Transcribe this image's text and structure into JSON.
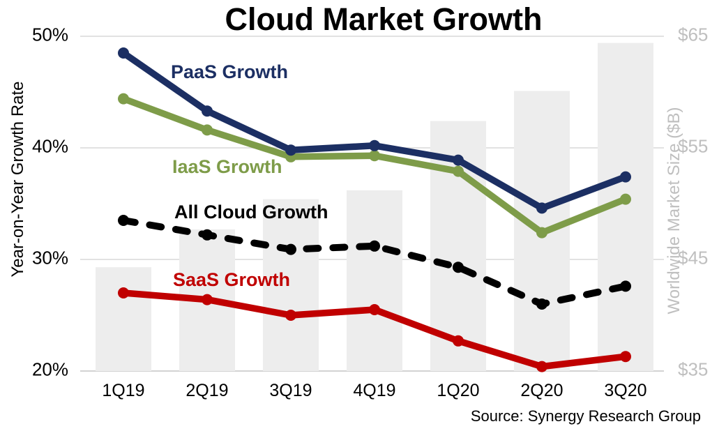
{
  "title": "Cloud Market Growth",
  "source": "Source: Synergy Research Group",
  "axes": {
    "left_title": "Year-on-Year Growth Rate",
    "right_title": "Worldwide Market Size ($B)",
    "left_ticks": [
      "50%",
      "40%",
      "30%",
      "20%"
    ],
    "right_ticks": [
      "$65",
      "$55",
      "$45",
      "$35"
    ]
  },
  "series_labels": {
    "paas": "PaaS Growth",
    "iaas": "IaaS Growth",
    "all_cloud": "All Cloud Growth",
    "saas": "SaaS Growth"
  },
  "colors": {
    "paas": "#1c2f63",
    "iaas": "#7e9c49",
    "all_cloud": "#000000",
    "saas": "#c00000",
    "bars": "#ededed",
    "gridline": "#e2e2e2",
    "baseline": "#d2d2d2",
    "right_axis_text": "#bfbfbf"
  },
  "chart_data": {
    "type": "line",
    "subtype": "combo-line-bar",
    "title": "Cloud Market Growth",
    "categories": [
      "1Q19",
      "2Q19",
      "3Q19",
      "4Q19",
      "1Q20",
      "2Q20",
      "3Q20"
    ],
    "ylabel_left": "Year-on-Year Growth Rate",
    "ylabel_right": "Worldwide Market Size ($B)",
    "ylim_left": [
      20,
      50
    ],
    "ylim_right": [
      35,
      65
    ],
    "ytick_step_left": 10,
    "ytick_step_right": 10,
    "grid": "horizontal",
    "legend": "inline-labels",
    "series": [
      {
        "name": "Worldwide Market Size ($B)",
        "type": "bar",
        "axis": "right",
        "color": "#ededed",
        "values": [
          44.3,
          47.7,
          50.4,
          51.2,
          57.4,
          60.1,
          64.4
        ]
      },
      {
        "name": "All Cloud Growth",
        "type": "line",
        "style": "dashed",
        "axis": "left",
        "color": "#000000",
        "values": [
          33.5,
          32.2,
          30.9,
          31.2,
          29.3,
          26.0,
          27.6
        ]
      },
      {
        "name": "IaaS Growth",
        "type": "line",
        "style": "solid",
        "axis": "left",
        "color": "#7e9c49",
        "values": [
          44.4,
          41.6,
          39.2,
          39.3,
          37.9,
          32.4,
          35.4
        ]
      },
      {
        "name": "PaaS Growth",
        "type": "line",
        "style": "solid",
        "axis": "left",
        "color": "#1c2f63",
        "values": [
          48.5,
          43.3,
          39.8,
          40.2,
          38.9,
          34.6,
          37.4
        ]
      },
      {
        "name": "SaaS Growth",
        "type": "line",
        "style": "solid",
        "axis": "left",
        "color": "#c00000",
        "values": [
          27.0,
          26.4,
          25.0,
          25.5,
          22.7,
          20.4,
          21.3
        ]
      }
    ],
    "source": "Source: Synergy Research Group"
  }
}
